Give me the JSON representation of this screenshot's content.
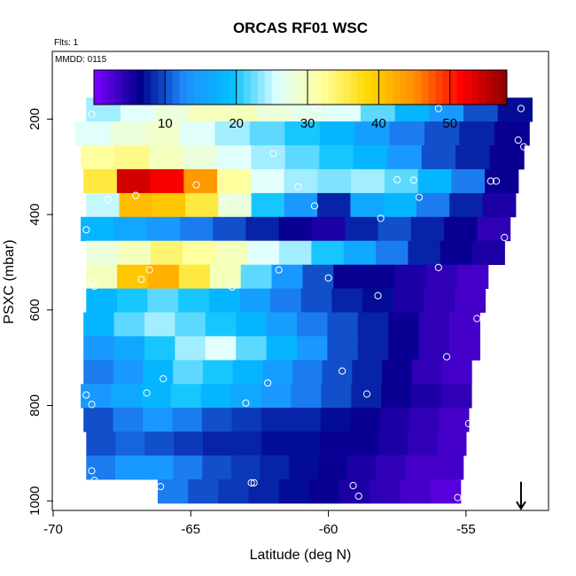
{
  "chart_data": {
    "type": "heatmap",
    "title": "ORCAS RF01 WSC",
    "annotations": [
      "Flts: 1",
      "MMDD: 0115"
    ],
    "xlabel": "Latitude (deg N)",
    "ylabel": "PSXC (mbar)",
    "xlim": [
      -70,
      -52
    ],
    "ylim": [
      1020,
      60
    ],
    "x_ticks": [
      -70,
      -65,
      -60,
      -55
    ],
    "x_tick_labels": [
      "-70",
      "-65",
      "-60",
      "-55"
    ],
    "y_ticks": [
      200,
      400,
      600,
      800,
      1000
    ],
    "y_tick_labels": [
      "200",
      "400",
      "600",
      "800",
      "1000"
    ],
    "colorbar": {
      "range": [
        0,
        58
      ],
      "ticks": [
        10,
        20,
        30,
        40,
        50
      ],
      "tick_labels": [
        "10",
        "20",
        "30",
        "40",
        "50"
      ],
      "palette": [
        "#7f00ff",
        "#00008b",
        "#1e90ff",
        "#00bfff",
        "#e0ffff",
        "#ffff99",
        "#ffd700",
        "#ff8c00",
        "#ff0000",
        "#8b0000"
      ]
    },
    "pressure_levels": [
      180,
      230,
      280,
      330,
      380,
      430,
      480,
      530,
      580,
      630,
      680,
      730,
      780,
      830,
      880,
      930,
      980
    ],
    "rows": [
      {
        "p": 180,
        "lat_start": -68.8,
        "lat_end": -52.6,
        "wsc": [
          24,
          26,
          28,
          30,
          30,
          28,
          27,
          26,
          22,
          18,
          14,
          10,
          7
        ]
      },
      {
        "p": 230,
        "lat_start": -69.2,
        "lat_end": -52.7,
        "wsc": [
          26,
          28,
          29,
          26,
          24,
          22,
          20,
          18,
          15,
          12,
          10,
          8,
          6
        ]
      },
      {
        "p": 280,
        "lat_start": -69.0,
        "lat_end": -52.9,
        "wsc": [
          32,
          33,
          30,
          28,
          26,
          24,
          22,
          20,
          18,
          14,
          10,
          8,
          6
        ]
      },
      {
        "p": 330,
        "lat_start": -68.9,
        "lat_end": -53.1,
        "wsc": [
          36,
          54,
          52,
          44,
          32,
          26,
          24,
          23,
          24,
          22,
          18,
          12,
          6
        ]
      },
      {
        "p": 380,
        "lat_start": -68.8,
        "lat_end": -53.2,
        "wsc": [
          25,
          41,
          40,
          36,
          28,
          20,
          14,
          8,
          16,
          18,
          12,
          8,
          5
        ]
      },
      {
        "p": 430,
        "lat_start": -69.0,
        "lat_end": -53.4,
        "wsc": [
          18,
          16,
          14,
          12,
          10,
          8,
          6,
          5,
          8,
          10,
          8,
          6,
          4
        ]
      },
      {
        "p": 480,
        "lat_start": -68.8,
        "lat_end": -53.6,
        "wsc": [
          28,
          30,
          34,
          32,
          30,
          26,
          24,
          20,
          16,
          12,
          8,
          6,
          5
        ]
      },
      {
        "p": 530,
        "lat_start": -68.8,
        "lat_end": -54.2,
        "wsc": [
          30,
          40,
          42,
          36,
          30,
          22,
          14,
          10,
          6,
          6,
          5,
          4,
          3
        ]
      },
      {
        "p": 580,
        "lat_start": -68.8,
        "lat_end": -54.3,
        "wsc": [
          18,
          20,
          22,
          20,
          18,
          15,
          12,
          10,
          8,
          7,
          5,
          4,
          3
        ]
      },
      {
        "p": 630,
        "lat_start": -68.9,
        "lat_end": -54.5,
        "wsc": [
          18,
          22,
          24,
          22,
          20,
          18,
          15,
          12,
          10,
          8,
          6,
          4,
          3
        ]
      },
      {
        "p": 680,
        "lat_start": -68.9,
        "lat_end": -54.5,
        "wsc": [
          14,
          16,
          20,
          24,
          26,
          22,
          18,
          14,
          10,
          8,
          6,
          4,
          3
        ]
      },
      {
        "p": 730,
        "lat_start": -68.9,
        "lat_end": -54.8,
        "wsc": [
          12,
          14,
          18,
          22,
          20,
          18,
          15,
          12,
          10,
          8,
          6,
          4,
          3
        ]
      },
      {
        "p": 780,
        "lat_start": -69.0,
        "lat_end": -54.8,
        "wsc": [
          14,
          16,
          18,
          20,
          18,
          16,
          14,
          12,
          10,
          8,
          6,
          5,
          4
        ]
      },
      {
        "p": 830,
        "lat_start": -68.9,
        "lat_end": -54.9,
        "wsc": [
          10,
          12,
          14,
          12,
          10,
          9,
          8,
          8,
          7,
          6,
          5,
          4,
          3
        ]
      },
      {
        "p": 880,
        "lat_start": -68.8,
        "lat_end": -55.0,
        "wsc": [
          10,
          11,
          10,
          9,
          8,
          8,
          7,
          7,
          6,
          6,
          5,
          4,
          3
        ]
      },
      {
        "p": 930,
        "lat_start": -68.8,
        "lat_end": -55.1,
        "wsc": [
          12,
          14,
          14,
          12,
          10,
          9,
          8,
          7,
          6,
          5,
          4,
          3,
          3
        ]
      },
      {
        "p": 980,
        "lat_start": -66.2,
        "lat_end": -55.2,
        "wsc": [
          12,
          10,
          9,
          8,
          7,
          6,
          5,
          4,
          3,
          2
        ]
      }
    ],
    "points": [
      [
        -68.6,
        190
      ],
      [
        -66.3,
        178
      ],
      [
        -60.4,
        177
      ],
      [
        -56.0,
        178
      ],
      [
        -53.0,
        178
      ],
      [
        -53.1,
        244
      ],
      [
        -52.9,
        258
      ],
      [
        -62.0,
        272
      ],
      [
        -61.1,
        342
      ],
      [
        -57.5,
        327
      ],
      [
        -56.9,
        328
      ],
      [
        -54.1,
        330
      ],
      [
        -53.9,
        330
      ],
      [
        -64.8,
        338
      ],
      [
        -67.0,
        360
      ],
      [
        -68.0,
        368
      ],
      [
        -63.8,
        372
      ],
      [
        -60.5,
        382
      ],
      [
        -56.7,
        364
      ],
      [
        -58.1,
        408
      ],
      [
        -68.8,
        432
      ],
      [
        -53.6,
        448
      ],
      [
        -66.5,
        516
      ],
      [
        -66.8,
        536
      ],
      [
        -61.8,
        516
      ],
      [
        -56.0,
        511
      ],
      [
        -60.0,
        533
      ],
      [
        -68.6,
        540
      ],
      [
        -68.5,
        550
      ],
      [
        -63.5,
        552
      ],
      [
        -58.2,
        570
      ],
      [
        -54.6,
        618
      ],
      [
        -55.7,
        698
      ],
      [
        -59.5,
        728
      ],
      [
        -66.0,
        744
      ],
      [
        -62.2,
        753
      ],
      [
        -58.6,
        776
      ],
      [
        -68.8,
        778
      ],
      [
        -66.6,
        774
      ],
      [
        -63.0,
        795
      ],
      [
        -68.6,
        798
      ],
      [
        -54.9,
        838
      ],
      [
        -68.6,
        937
      ],
      [
        -54.2,
        935
      ],
      [
        -66.1,
        970
      ],
      [
        -62.7,
        962
      ],
      [
        -62.8,
        962
      ],
      [
        -59.1,
        968
      ],
      [
        -68.5,
        957
      ],
      [
        -58.9,
        990
      ],
      [
        -55.3,
        993
      ]
    ],
    "marker": {
      "lat": -53.0,
      "p_from": 960,
      "p_to": 1020
    }
  }
}
